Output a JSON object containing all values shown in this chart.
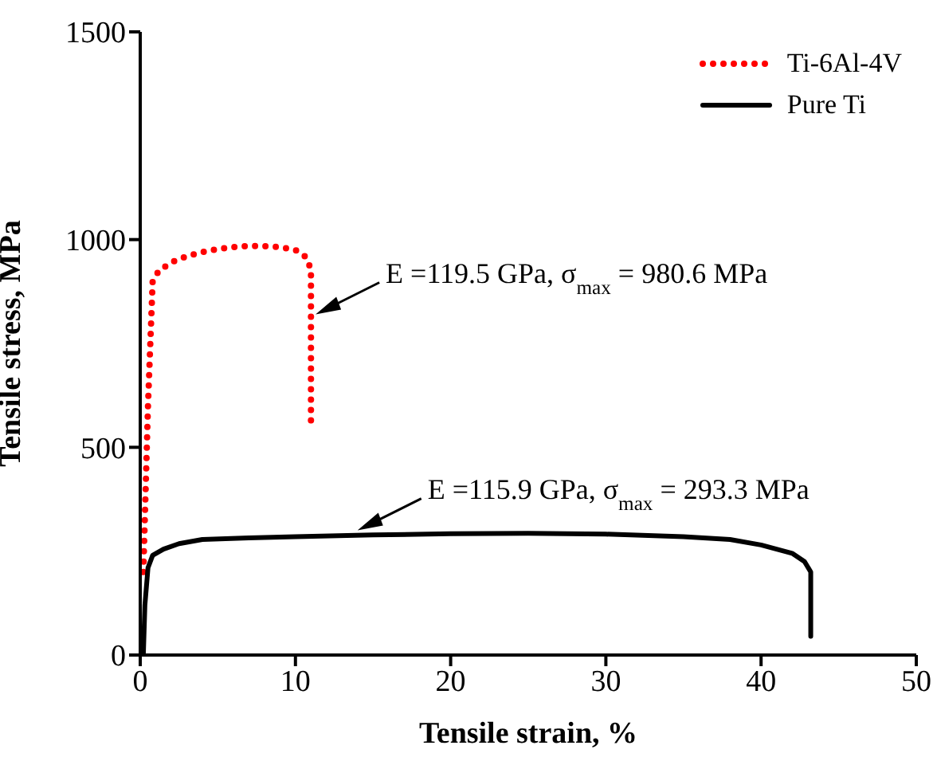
{
  "chart_data": {
    "type": "line",
    "xlabel": "Tensile strain, %",
    "ylabel": "Tensile stress, MPa",
    "xlim": [
      0,
      50
    ],
    "xticks": [
      0,
      10,
      20,
      30,
      40,
      50
    ],
    "ylim": [
      0,
      1500
    ],
    "yticks": [
      0,
      500,
      1000,
      1500
    ],
    "legend": "top right",
    "marker": "none",
    "series": [
      {
        "name": "Ti-6Al-4V",
        "color": "#ff0000",
        "line_style": "dotted",
        "x": [
          0.2,
          0.5,
          0.8,
          1.2,
          2,
          3,
          4,
          5,
          6,
          7,
          8,
          9,
          10,
          10.6,
          11,
          11,
          11,
          11
        ],
        "values": [
          200,
          600,
          900,
          925,
          945,
          960,
          970,
          977,
          982,
          985,
          984,
          982,
          975,
          960,
          930,
          850,
          700,
          560
        ]
      },
      {
        "name": "Pure Ti",
        "color": "#000000",
        "line_style": "solid",
        "x": [
          0.2,
          0.3,
          0.5,
          0.8,
          1.5,
          2.5,
          4,
          7,
          10,
          15,
          20,
          25,
          30,
          35,
          38,
          40,
          42,
          42.8,
          43.2,
          43.2
        ],
        "values": [
          0,
          120,
          210,
          240,
          255,
          268,
          278,
          282,
          285,
          289,
          292,
          293,
          291,
          285,
          278,
          265,
          245,
          225,
          200,
          45
        ]
      }
    ],
    "annotations": [
      {
        "text": "E =119.5 GPa, σ$_{max}$ = 980.6 MPa",
        "x": 11.3,
        "y": 820
      },
      {
        "text": "E =115.9 GPa, σ$_{max}$ = 293.3 MPa",
        "x": 14,
        "y": 300
      }
    ]
  }
}
